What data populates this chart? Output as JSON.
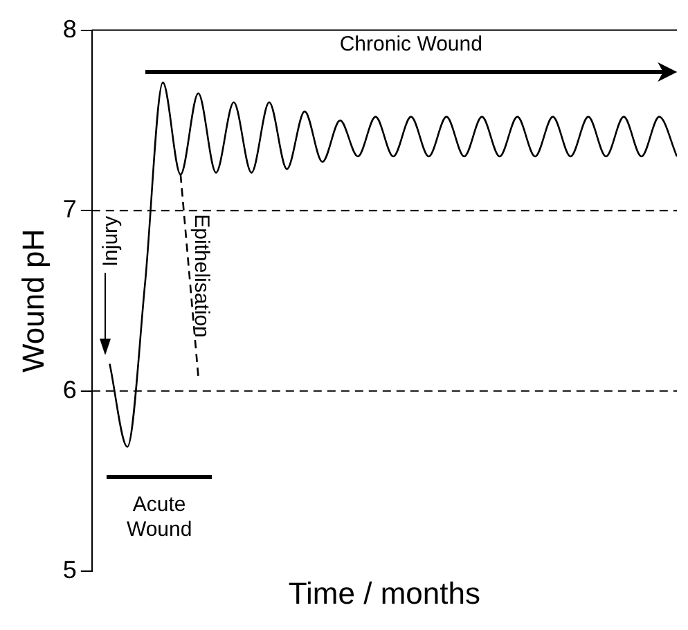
{
  "chart_data": {
    "type": "line",
    "xlabel": "Time / months",
    "ylabel": "Wound pH",
    "categories": [
      null,
      null,
      null,
      null,
      null,
      null,
      null,
      null,
      null,
      null,
      null,
      null,
      null,
      null,
      null,
      null,
      null,
      null,
      null,
      null,
      null,
      null,
      null,
      null,
      null,
      null,
      null,
      null,
      null,
      null,
      null,
      null,
      null,
      null
    ],
    "series": [
      {
        "color": "#000000",
        "line_style": "solid",
        "values": [
          null,
          6.15,
          5.69,
          6.6,
          7.71,
          7.2,
          7.65,
          7.21,
          7.6,
          7.21,
          7.6,
          7.23,
          7.55,
          7.27,
          7.5,
          7.3,
          7.52,
          7.3,
          7.52,
          7.3,
          7.52,
          7.3,
          7.52,
          7.3,
          7.52,
          7.3,
          7.52,
          7.3,
          7.52,
          7.3,
          7.52,
          7.3,
          7.52,
          7.3
        ]
      },
      {
        "color": "#000000",
        "line_style": "dashed",
        "values": [
          null,
          null,
          null,
          null,
          null,
          7.2,
          6.08,
          null,
          null,
          null,
          null,
          null,
          null,
          null,
          null,
          null,
          null,
          null,
          null,
          null,
          null,
          null,
          null,
          null,
          null,
          null,
          null,
          null,
          null,
          null,
          null,
          null,
          null,
          null
        ]
      }
    ],
    "ylim": [
      5,
      8
    ],
    "yticks": [
      5,
      6,
      7,
      8
    ],
    "grid": false,
    "legend": false,
    "marker": "none",
    "ref_lines": [
      {
        "axis": "y",
        "value": 7,
        "line_style": "dashed"
      },
      {
        "axis": "y",
        "value": 6,
        "line_style": "dashed"
      }
    ],
    "annotations": [
      "Chronic Wound",
      "Injury",
      "Epithelisation",
      "Acute Wound"
    ]
  }
}
